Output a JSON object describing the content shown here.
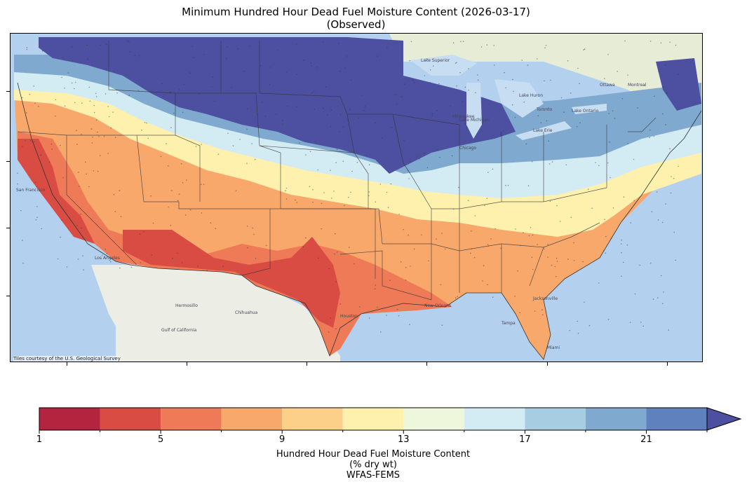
{
  "title_line1": "Minimum Hundred Hour Dead Fuel Moisture Content (2026-03-17)",
  "title_line2": "(Observed)",
  "map": {
    "credit": "Tiles courtesy of the U.S. Geological Survey",
    "labels": {
      "lake_superior": "Lake Superior",
      "lake_michigan": "Lake Michigan",
      "lake_huron": "Lake Huron",
      "lake_erie": "Lake Erie",
      "lake_ontario": "Lake Ontario",
      "san_francisco": "San Francisco",
      "los_angeles": "Los Angeles",
      "chihuahua": "Chihuahua",
      "hermosillo": "Hermosillo",
      "gulf_of_california": "Gulf of California",
      "milwaukee": "Milwaukee",
      "chicago": "Chicago",
      "montreal": "Montreal",
      "ottawa": "Ottawa",
      "toronto": "Toronto",
      "jacksonville": "Jacksonville",
      "tampa": "Tampa",
      "miami": "Miami",
      "houston": "Houston",
      "new_orleans": "New Orleans"
    },
    "legend": {
      "title_line1": "Hundred Hour Dead Fuel Moisture Content",
      "title_line2": "(% dry wt)",
      "title_line3": "WFAS-FEMS",
      "tick_labels": [
        "1",
        "5",
        "9",
        "13",
        "17",
        "21"
      ],
      "bin_edges": [
        1,
        3,
        5,
        7,
        9,
        11,
        13,
        15,
        17,
        19,
        21,
        23
      ],
      "colors": [
        "#b5243f",
        "#d94c44",
        "#ef7a57",
        "#f9a86b",
        "#fdd08a",
        "#fef1ae",
        "#eef6dc",
        "#d3ebf3",
        "#a7cde2",
        "#7fa9cf",
        "#5f82bf"
      ],
      "over_color": "#4d50a0",
      "extend": "max"
    },
    "fill_colors": {
      "ocean": "#b9d6ef",
      "land_bg": "#eef0e8",
      "lake": "#c6ddf2"
    }
  }
}
